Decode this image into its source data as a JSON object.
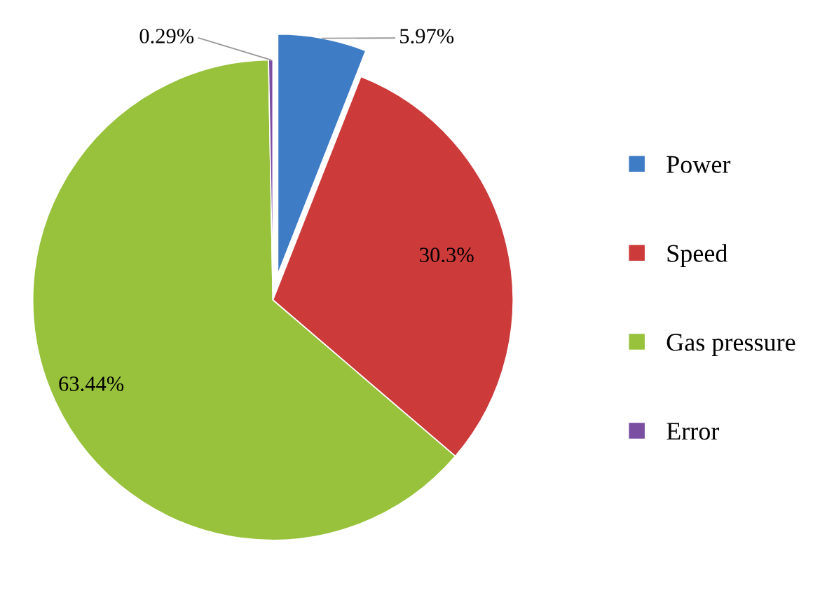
{
  "chart_data": {
    "type": "pie",
    "categories": [
      "Power",
      "Speed",
      "Gas pressure",
      "Error"
    ],
    "values": [
      5.97,
      30.3,
      63.44,
      0.29
    ],
    "colors": [
      "#3f7cc6",
      "#cc3a3a",
      "#98c23c",
      "#7a4ea0"
    ],
    "value_labels": [
      "5.97%",
      "30.3%",
      "63.44%",
      "0.29%"
    ],
    "legend": "right"
  }
}
